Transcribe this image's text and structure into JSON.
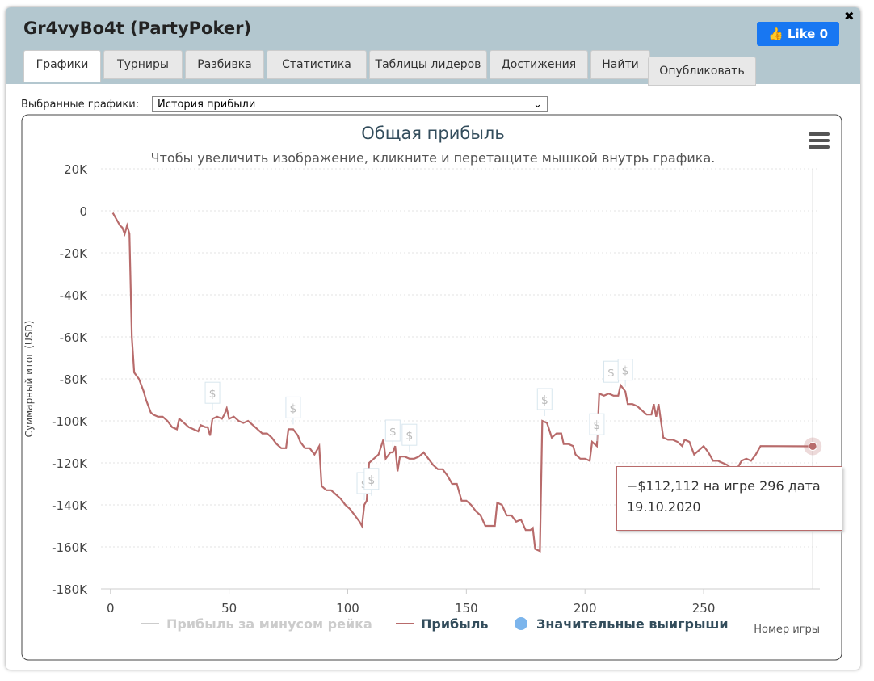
{
  "window": {
    "title": "Gr4vyBo4t (PartyPoker)",
    "like": "Like",
    "like_count": 0,
    "tabs": [
      "Графики",
      "Турниры",
      "Разбивка",
      "Статистика",
      "Таблицы лидеров",
      "Достижения",
      "Найти"
    ],
    "publish": "Опубликовать",
    "select_label": "Выбранные графики:",
    "select_value": "История прибыли"
  },
  "chart_data": {
    "type": "line",
    "title": "Общая прибыль",
    "subtitle": "Чтобы увеличить изображение, кликните и перетащите мышкой внутрь графика.",
    "y_label": "Суммарный итог (USD)",
    "x_label": "Номер игры",
    "xlim": [
      -4,
      299
    ],
    "xticks": [
      0,
      50,
      100,
      150,
      200,
      250
    ],
    "ylim": [
      -180000,
      20000
    ],
    "yticks": [
      {
        "value": 20000,
        "label": "20K"
      },
      0,
      {
        "value": -20000,
        "label": "-20K"
      },
      {
        "value": -40000,
        "label": "-40K"
      },
      {
        "value": -60000,
        "label": "-60K"
      },
      {
        "value": -80000,
        "label": "-80K"
      },
      {
        "value": -100000,
        "label": "-100K"
      },
      {
        "value": -120000,
        "label": "-120K"
      },
      {
        "value": -140000,
        "label": "-140K"
      },
      {
        "value": -160000,
        "label": "-160K"
      },
      {
        "value": -180000,
        "label": "-180K"
      }
    ],
    "grid": true,
    "series": [
      {
        "name": "Прибыль за минусом рейка",
        "color": "#cccccc",
        "visible": false,
        "x": [],
        "values": []
      },
      {
        "name": "Прибыль",
        "color": "#b86b6b",
        "visible": true,
        "x": [
          1,
          3,
          4,
          5,
          6,
          7,
          8,
          9,
          10,
          12,
          14,
          15,
          17,
          18,
          20,
          22,
          24,
          26,
          28,
          29,
          31,
          33,
          35,
          37,
          38,
          40,
          41,
          42,
          43,
          45,
          47,
          48,
          49,
          50,
          52,
          54,
          56,
          58,
          60,
          62,
          64,
          66,
          68,
          70,
          72,
          74,
          75,
          77,
          79,
          80,
          82,
          84,
          86,
          88,
          89,
          91,
          93,
          95,
          97,
          99,
          101,
          103,
          105,
          106,
          107,
          108,
          109,
          111,
          113,
          115,
          116,
          118,
          119,
          120,
          121,
          122,
          124,
          126,
          128,
          130,
          132,
          134,
          136,
          138,
          140,
          142,
          144,
          146,
          148,
          150,
          152,
          154,
          156,
          158,
          160,
          162,
          163,
          165,
          167,
          169,
          171,
          173,
          175,
          177,
          178,
          179,
          181,
          182,
          184,
          186,
          188,
          190,
          191,
          193,
          195,
          196,
          198,
          200,
          202,
          203,
          205,
          206,
          208,
          210,
          212,
          214,
          215,
          217,
          218,
          220,
          222,
          224,
          226,
          228,
          229,
          230,
          231,
          232,
          233,
          235,
          237,
          239,
          241,
          242,
          244,
          246,
          248,
          250,
          252,
          254,
          256,
          258,
          260,
          262,
          264,
          266,
          268,
          270,
          272,
          274,
          296
        ],
        "values": [
          -1000,
          -5000,
          -7000,
          -8000,
          -11000,
          -7000,
          -11000,
          -60000,
          -77000,
          -80000,
          -86000,
          -90000,
          -96000,
          -97000,
          -98000,
          -98000,
          -100000,
          -103000,
          -104000,
          -99000,
          -101000,
          -103000,
          -104000,
          -105000,
          -102000,
          -103000,
          -103000,
          -107000,
          -99000,
          -98000,
          -99000,
          -97000,
          -94000,
          -99000,
          -98000,
          -100000,
          -101000,
          -100000,
          -102000,
          -104000,
          -106000,
          -106000,
          -108000,
          -111000,
          -113000,
          -113000,
          -104000,
          -104000,
          -107000,
          -110000,
          -113000,
          -113000,
          -116000,
          -112000,
          -131000,
          -133000,
          -133000,
          -135000,
          -137000,
          -140000,
          -142000,
          -145000,
          -148000,
          -150000,
          -140000,
          -138000,
          -120000,
          -118000,
          -116000,
          -109000,
          -118000,
          -115000,
          -115000,
          -112000,
          -124000,
          -117000,
          -117000,
          -118000,
          -118000,
          -117000,
          -115000,
          -118000,
          -121000,
          -123000,
          -123000,
          -126000,
          -130000,
          -130000,
          -138000,
          -138000,
          -140000,
          -143000,
          -145000,
          -150000,
          -150000,
          -150000,
          -139000,
          -140000,
          -145000,
          -145000,
          -148000,
          -147000,
          -152000,
          -152000,
          -151000,
          -161000,
          -162000,
          -100000,
          -101000,
          -108000,
          -106000,
          -106000,
          -111000,
          -111000,
          -112000,
          -116000,
          -118000,
          -118000,
          -119000,
          -110000,
          -112000,
          -87000,
          -88000,
          -87000,
          -88000,
          -88000,
          -83000,
          -86000,
          -92000,
          -92000,
          -93000,
          -95000,
          -97000,
          -97000,
          -92000,
          -98000,
          -92000,
          -100000,
          -108000,
          -109000,
          -109000,
          -110000,
          -112000,
          -109000,
          -110000,
          -116000,
          -114000,
          -112000,
          -115000,
          -119000,
          -119000,
          -120000,
          -121000,
          -123000,
          -123000,
          -119000,
          -118000,
          -119000,
          -116000,
          -112000,
          -112112
        ]
      },
      {
        "name": "Значительные выигрыши",
        "color": "#7cb5ec",
        "visible": true,
        "marker": "$",
        "x": [
          43,
          77,
          107,
          110,
          119,
          126,
          183,
          205,
          211,
          217
        ],
        "values": [
          -97000,
          -104000,
          -140000,
          -138000,
          -115000,
          -117000,
          -100000,
          -112000,
          -87000,
          -86000
        ]
      }
    ],
    "tooltip": {
      "text": "−$112,112 на игре 296 дата 19.10.2020",
      "x": 296,
      "value": -112112
    }
  }
}
